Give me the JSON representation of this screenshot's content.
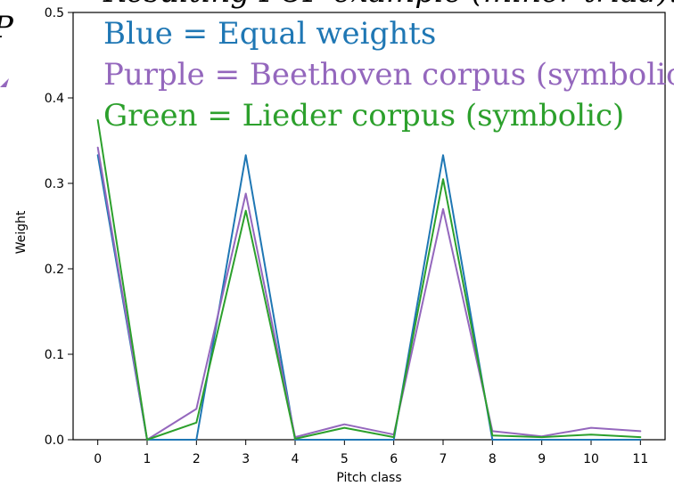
{
  "chart_data": {
    "type": "line",
    "title": "",
    "xlabel": "Pitch class",
    "ylabel": "Weight",
    "x": [
      0,
      1,
      2,
      3,
      4,
      5,
      6,
      7,
      8,
      9,
      10,
      11
    ],
    "xlim": [
      -0.5,
      11.5
    ],
    "ylim": [
      0,
      0.5
    ],
    "x_tick_labels": [
      "0",
      "1",
      "2",
      "3",
      "4",
      "5",
      "6",
      "7",
      "8",
      "9",
      "10",
      "11"
    ],
    "y_tick_labels": [
      "0.0",
      "0.1",
      "0.2",
      "0.3",
      "0.4",
      "0.5"
    ],
    "grid": false,
    "series": [
      {
        "values": [
          0.333,
          0.0,
          0.0,
          0.333,
          0.0,
          0.0,
          0.0,
          0.333,
          0.0,
          0.0,
          0.0,
          0.0
        ],
        "color": "#1f77b4"
      },
      {
        "values": [
          0.342,
          0.0,
          0.036,
          0.288,
          0.003,
          0.018,
          0.006,
          0.27,
          0.01,
          0.004,
          0.014,
          0.01
        ],
        "color": "#9467bd"
      },
      {
        "values": [
          0.374,
          0.0,
          0.02,
          0.268,
          0.001,
          0.014,
          0.003,
          0.305,
          0.005,
          0.003,
          0.006,
          0.003
        ],
        "color": "#2ca02c"
      }
    ],
    "annotations": [
      {
        "text": "Resulting PCP example (minor triad):",
        "color": "#000000"
      },
      {
        "text": "Blue = Equal weights",
        "color": "#1f77b4"
      },
      {
        "text": "Purple = Beethoven corpus (symbolic)",
        "color": "#9467bd"
      },
      {
        "text": "Green = Lieder corpus (symbolic)",
        "color": "#2ca02c"
      }
    ],
    "cropped_left_text": "P"
  }
}
